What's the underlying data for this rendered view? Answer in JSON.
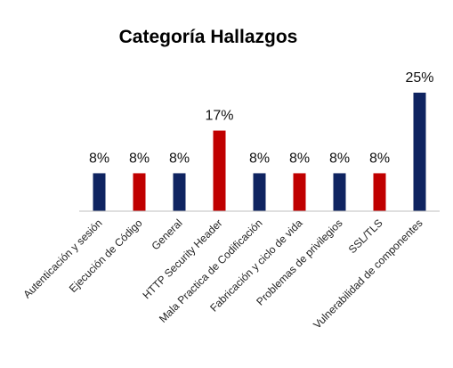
{
  "chart_data": {
    "type": "bar",
    "title": "Categoría Hallazgos",
    "xlabel": "",
    "ylabel": "",
    "ylim": [
      0,
      25
    ],
    "grid": false,
    "legend": "none",
    "categories": [
      "Autenticación y sesión",
      "Ejecución de Código",
      "General",
      "HTTP Security Header",
      "Mala Practica de Codificación",
      "Fabricación y ciclo de vida",
      "Problemas de privilegios",
      "SSL/TLS",
      "Vulnerabilidad de componentes"
    ],
    "values": [
      8,
      8,
      8,
      17,
      8,
      8,
      8,
      8,
      25
    ],
    "data_labels": [
      "8%",
      "8%",
      "8%",
      "17%",
      "8%",
      "8%",
      "8%",
      "8%",
      "25%"
    ],
    "bar_colors": [
      "#0f2461",
      "#c00000",
      "#0f2461",
      "#c00000",
      "#0f2461",
      "#c00000",
      "#0f2461",
      "#c00000",
      "#0f2461"
    ],
    "axis_color": "#bfbfbf"
  }
}
